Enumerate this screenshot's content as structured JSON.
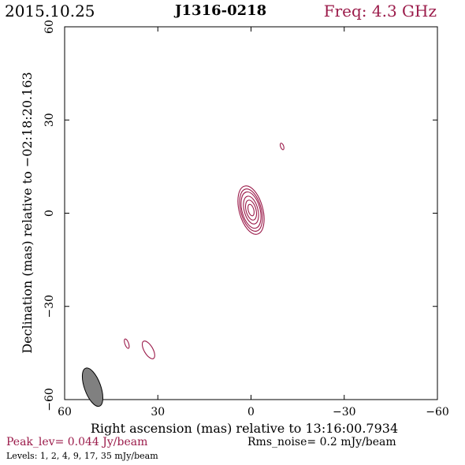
{
  "header": {
    "date": "2015.10.25",
    "source": "J1316-0218",
    "frequency": "Freq: 4.3 GHz"
  },
  "footer": {
    "peak": "Peak_lev=  0.044 Jy/beam",
    "rms": "Rms_noise=  0.2 mJy/beam",
    "levels": "Levels:  1,  2,  4,  9,  17,  35 mJy/beam"
  },
  "chart_data": {
    "type": "contour",
    "xlabel": "Right ascension (mas) relative to 13:16:00.7934",
    "ylabel": "Declination (mas) relative to −02:18:20.163",
    "xlim": [
      60,
      -60
    ],
    "ylim": [
      -60,
      60
    ],
    "xticks": [
      60,
      30,
      0,
      -30,
      -60
    ],
    "yticks": [
      -60,
      -30,
      0,
      30,
      60
    ],
    "xtick_labels": [
      "60",
      "30",
      "0",
      "−30",
      "−60"
    ],
    "ytick_labels": [
      "−60",
      "−30",
      "0",
      "30",
      "60"
    ],
    "contour_levels_mJy": [
      1,
      2,
      4,
      9,
      17,
      35
    ],
    "contour_color": "#9b1b4a",
    "beam": {
      "x": 51,
      "y": -56,
      "major_mas": 6.5,
      "minor_mas": 2.6,
      "pa_deg": -20,
      "color": "#808080"
    },
    "components": [
      {
        "x": 0,
        "y": 1,
        "levels": [
          {
            "major": 8.0,
            "minor": 3.8,
            "pa": -15
          },
          {
            "major": 7.0,
            "minor": 3.3,
            "pa": -15
          },
          {
            "major": 6.0,
            "minor": 2.9,
            "pa": -15
          },
          {
            "major": 4.6,
            "minor": 2.2,
            "pa": -15
          },
          {
            "major": 3.3,
            "minor": 1.6,
            "pa": -15
          },
          {
            "major": 1.9,
            "minor": 0.9,
            "pa": -15
          }
        ]
      },
      {
        "x": -10,
        "y": 21.5,
        "levels": [
          {
            "major": 1.1,
            "minor": 0.5,
            "pa": -20
          }
        ]
      },
      {
        "x": 33,
        "y": -44,
        "levels": [
          {
            "major": 3.2,
            "minor": 1.4,
            "pa": -30
          }
        ]
      },
      {
        "x": 40,
        "y": -42,
        "levels": [
          {
            "major": 1.6,
            "minor": 0.6,
            "pa": -20
          }
        ]
      }
    ]
  }
}
